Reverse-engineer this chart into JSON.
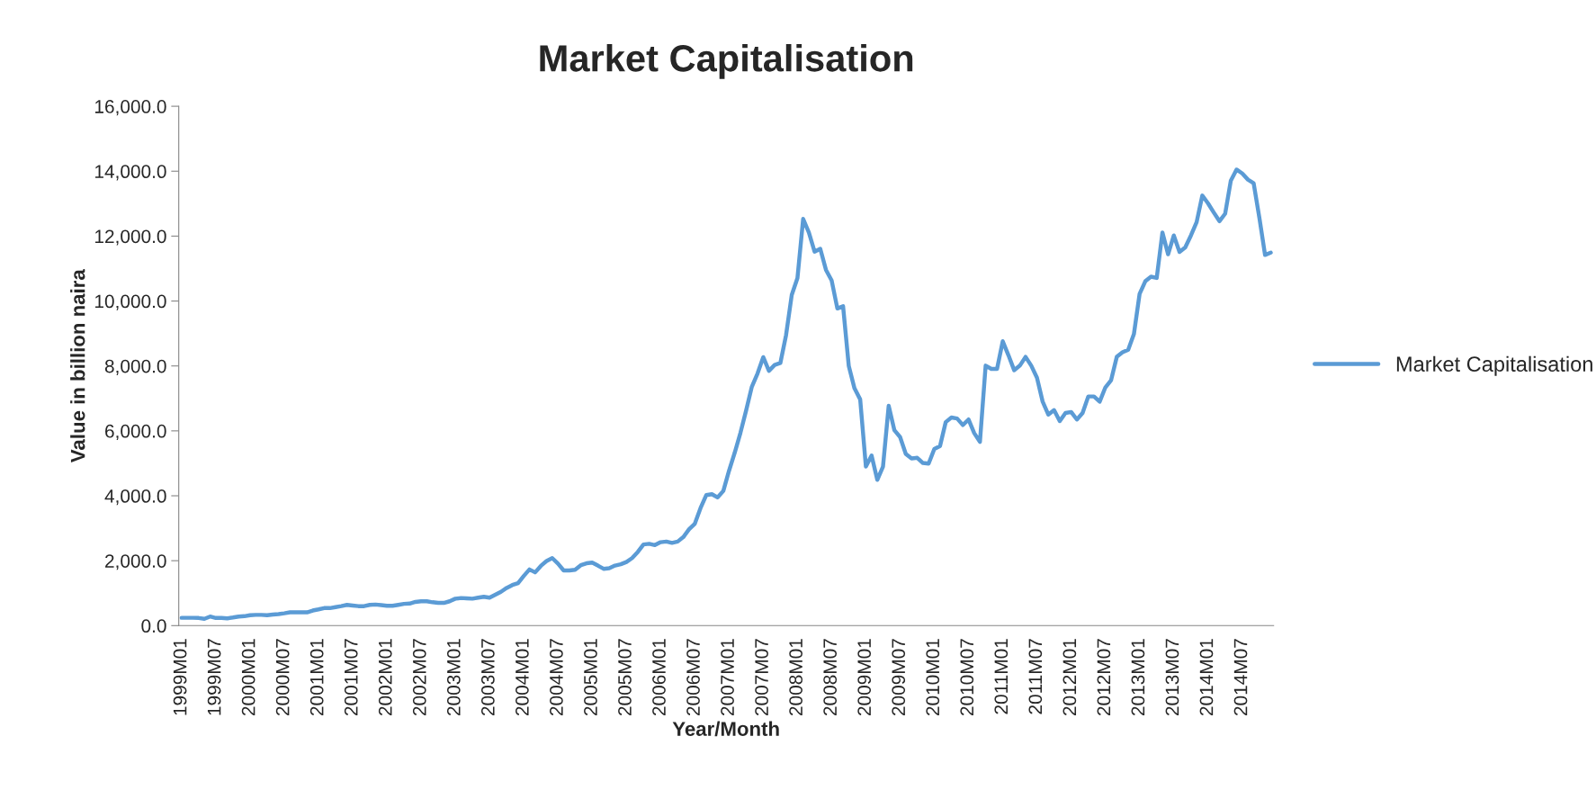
{
  "chart_data": {
    "type": "line",
    "title": "Market Capitalisation",
    "xlabel": "Year/Month",
    "ylabel": "Value in billion naira",
    "categories": [
      "1999M01",
      null,
      null,
      null,
      null,
      null,
      "1999M07",
      null,
      null,
      null,
      null,
      null,
      "2000M01",
      null,
      null,
      null,
      null,
      null,
      "2000M07",
      null,
      null,
      null,
      null,
      null,
      "2001M01",
      null,
      null,
      null,
      null,
      null,
      "2001M07",
      null,
      null,
      null,
      null,
      null,
      "2002M01",
      null,
      null,
      null,
      null,
      null,
      "2002M07",
      null,
      null,
      null,
      null,
      null,
      "2003M01",
      null,
      null,
      null,
      null,
      null,
      "2003M07",
      null,
      null,
      null,
      null,
      null,
      "2004M01",
      null,
      null,
      null,
      null,
      null,
      "2004M07",
      null,
      null,
      null,
      null,
      null,
      "2005M01",
      null,
      null,
      null,
      null,
      null,
      "2005M07",
      null,
      null,
      null,
      null,
      null,
      "2006M01",
      null,
      null,
      null,
      null,
      null,
      "2006M07",
      null,
      null,
      null,
      null,
      null,
      "2007M01",
      null,
      null,
      null,
      null,
      null,
      "2007M07",
      null,
      null,
      null,
      null,
      null,
      "2008M01",
      null,
      null,
      null,
      null,
      null,
      "2008M07",
      null,
      null,
      null,
      null,
      null,
      "2009M01",
      null,
      null,
      null,
      null,
      null,
      "2009M07",
      null,
      null,
      null,
      null,
      null,
      "2010M01",
      null,
      null,
      null,
      null,
      null,
      "2010M07",
      null,
      null,
      null,
      null,
      null,
      "2011M01",
      null,
      null,
      null,
      null,
      null,
      "2011M07",
      null,
      null,
      null,
      null,
      null,
      "2012M01",
      null,
      null,
      null,
      null,
      null,
      "2012M07",
      null,
      null,
      null,
      null,
      null,
      "2013M01",
      null,
      null,
      null,
      null,
      null,
      "2013M07",
      null,
      null,
      null,
      null,
      null,
      "2014M01",
      null,
      null,
      null,
      null,
      null,
      "2014M07",
      null,
      null,
      null,
      null,
      null
    ],
    "series": [
      {
        "name": "Market Capitalisation",
        "color": "#5b9bd5",
        "values": [
          240,
          240,
          240,
          235,
          210,
          280,
          235,
          235,
          225,
          250,
          280,
          290,
          320,
          330,
          330,
          320,
          340,
          355,
          380,
          410,
          410,
          410,
          410,
          465,
          500,
          540,
          540,
          570,
          600,
          640,
          620,
          600,
          600,
          640,
          650,
          630,
          610,
          610,
          640,
          670,
          680,
          730,
          750,
          750,
          720,
          700,
          700,
          750,
          830,
          850,
          840,
          830,
          860,
          890,
          860,
          950,
          1040,
          1160,
          1250,
          1310,
          1530,
          1730,
          1640,
          1840,
          1990,
          2080,
          1910,
          1700,
          1700,
          1720,
          1860,
          1920,
          1940,
          1850,
          1750,
          1770,
          1850,
          1890,
          1960,
          2080,
          2270,
          2500,
          2520,
          2480,
          2570,
          2590,
          2550,
          2590,
          2730,
          2970,
          3140,
          3620,
          4020,
          4050,
          3950,
          4150,
          4770,
          5330,
          5940,
          6630,
          7360,
          7770,
          8270,
          7850,
          8030,
          8090,
          8950,
          10190,
          10710,
          12530,
          12110,
          11520,
          11610,
          10960,
          10630,
          9770,
          9840,
          8000,
          7310,
          6970,
          4900,
          5240,
          4490,
          4900,
          6770,
          6020,
          5810,
          5290,
          5150,
          5170,
          5010,
          4990,
          5440,
          5530,
          6270,
          6410,
          6380,
          6180,
          6350,
          5930,
          5660,
          8010,
          7910,
          7910,
          8760,
          8330,
          7870,
          8010,
          8280,
          8010,
          7640,
          6900,
          6500,
          6640,
          6300,
          6550,
          6580,
          6350,
          6550,
          7060,
          7060,
          6900,
          7340,
          7560,
          8280,
          8420,
          8500,
          8980,
          10220,
          10610,
          10750,
          10710,
          12110,
          11440,
          12020,
          11510,
          11650,
          12020,
          12430,
          13250,
          13010,
          12730,
          12460,
          12690,
          13710,
          14050,
          13930,
          13740,
          13630,
          12570,
          11420,
          11490
        ]
      }
    ],
    "ylim": [
      0,
      16000
    ],
    "yticks": [
      {
        "value": 0,
        "label": "0.0"
      },
      {
        "value": 2000,
        "label": "2,000.0"
      },
      {
        "value": 4000,
        "label": "4,000.0"
      },
      {
        "value": 6000,
        "label": "6,000.0"
      },
      {
        "value": 8000,
        "label": "8,000.0"
      },
      {
        "value": 10000,
        "label": "10,000.0"
      },
      {
        "value": 12000,
        "label": "12,000.0"
      },
      {
        "value": 14000,
        "label": "14,000.0"
      },
      {
        "value": 16000,
        "label": "16,000.0"
      }
    ],
    "grid": false,
    "legend": "right"
  }
}
